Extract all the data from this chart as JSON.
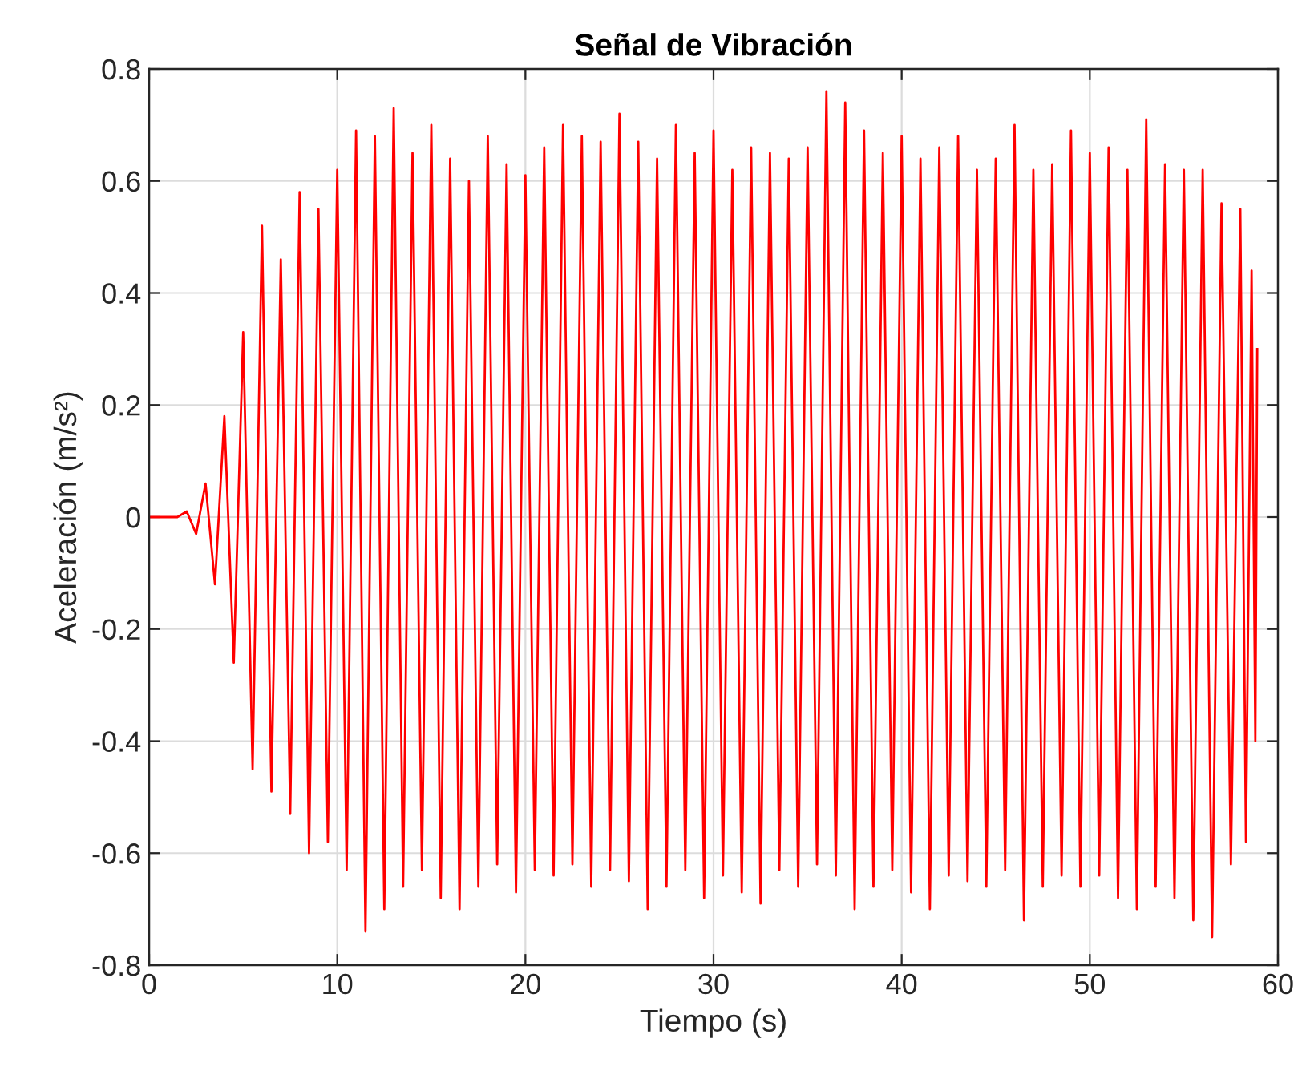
{
  "chart_data": {
    "type": "line",
    "title": "Señal de Vibración",
    "xlabel": "Tiempo (s)",
    "ylabel": "Aceleración (m/s²)",
    "x": [
      0,
      1.5,
      2.0,
      2.5,
      3.0,
      3.5,
      4.0,
      4.5,
      5.0,
      5.5,
      6.0,
      6.5,
      7.0,
      7.5,
      8.0,
      8.5,
      9.0,
      9.5,
      10.0,
      10.5,
      11.0,
      11.5,
      12.0,
      12.5,
      13.0,
      13.5,
      14.0,
      14.5,
      15.0,
      15.5,
      16.0,
      16.5,
      17.0,
      17.5,
      18.0,
      18.5,
      19.0,
      19.5,
      20.0,
      20.5,
      21.0,
      21.5,
      22.0,
      22.5,
      23.0,
      23.5,
      24.0,
      24.5,
      25.0,
      25.5,
      26.0,
      26.5,
      27.0,
      27.5,
      28.0,
      28.5,
      29.0,
      29.5,
      30.0,
      30.5,
      31.0,
      31.5,
      32.0,
      32.5,
      33.0,
      33.5,
      34.0,
      34.5,
      35.0,
      35.5,
      36.0,
      36.5,
      37.0,
      37.5,
      38.0,
      38.5,
      39.0,
      39.5,
      40.0,
      40.5,
      41.0,
      41.5,
      42.0,
      42.5,
      43.0,
      43.5,
      44.0,
      44.5,
      45.0,
      45.5,
      46.0,
      46.5,
      47.0,
      47.5,
      48.0,
      48.5,
      49.0,
      49.5,
      50.0,
      50.5,
      51.0,
      51.5,
      52.0,
      52.5,
      53.0,
      53.5,
      54.0,
      54.5,
      55.0,
      55.5,
      56.0,
      56.5,
      57.0,
      57.5,
      58.0,
      58.3,
      58.6,
      58.8,
      58.9
    ],
    "series": [
      {
        "color": "#ff0000",
        "values": [
          0,
          0,
          0.01,
          -0.03,
          0.06,
          -0.12,
          0.18,
          -0.26,
          0.33,
          -0.45,
          0.52,
          -0.49,
          0.46,
          -0.53,
          0.58,
          -0.6,
          0.55,
          -0.58,
          0.62,
          -0.63,
          0.69,
          -0.74,
          0.68,
          -0.7,
          0.73,
          -0.66,
          0.65,
          -0.63,
          0.7,
          -0.68,
          0.64,
          -0.7,
          0.6,
          -0.66,
          0.68,
          -0.62,
          0.63,
          -0.67,
          0.61,
          -0.63,
          0.66,
          -0.64,
          0.7,
          -0.62,
          0.68,
          -0.66,
          0.67,
          -0.63,
          0.72,
          -0.65,
          0.67,
          -0.7,
          0.64,
          -0.66,
          0.7,
          -0.63,
          0.65,
          -0.68,
          0.69,
          -0.64,
          0.62,
          -0.67,
          0.66,
          -0.69,
          0.65,
          -0.63,
          0.64,
          -0.66,
          0.66,
          -0.62,
          0.76,
          -0.64,
          0.74,
          -0.7,
          0.69,
          -0.66,
          0.65,
          -0.63,
          0.68,
          -0.67,
          0.64,
          -0.7,
          0.66,
          -0.64,
          0.68,
          -0.65,
          0.62,
          -0.66,
          0.64,
          -0.63,
          0.7,
          -0.72,
          0.62,
          -0.66,
          0.63,
          -0.64,
          0.69,
          -0.66,
          0.65,
          -0.64,
          0.66,
          -0.68,
          0.62,
          -0.7,
          0.71,
          -0.66,
          0.63,
          -0.68,
          0.62,
          -0.72,
          0.62,
          -0.75,
          0.56,
          -0.62,
          0.55,
          -0.58,
          0.44,
          -0.4,
          0.3
        ]
      }
    ],
    "xlim": [
      0,
      60
    ],
    "xticks": [
      0,
      10,
      20,
      30,
      40,
      50,
      60
    ],
    "ylim": [
      -0.8,
      0.8
    ],
    "yticks": [
      -0.8,
      -0.6,
      -0.4,
      -0.2,
      0,
      0.2,
      0.4,
      0.6,
      0.8
    ],
    "grid": true,
    "line_style": "solid"
  }
}
